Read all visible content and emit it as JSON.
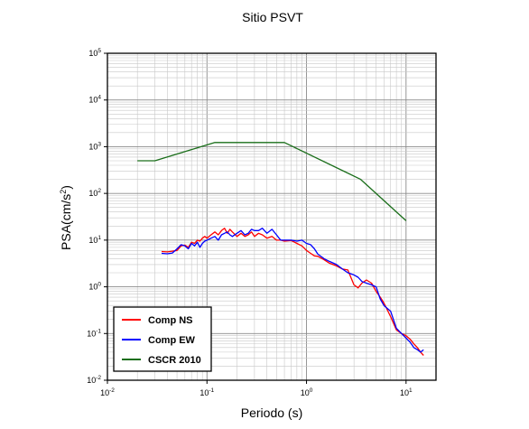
{
  "chart_data": {
    "type": "line",
    "title": "Sitio PSVT",
    "xlabel": "Periodo (s)",
    "ylabel": {
      "base": "PSA(cm/s",
      "sup": "2",
      "end": ")"
    },
    "x_scale": "log",
    "y_scale": "log",
    "xlim": [
      0.01,
      20
    ],
    "ylim": [
      0.01,
      100000
    ],
    "grid": true,
    "legend_position": "bottom-left",
    "x_ticks": [
      {
        "value": 0.01,
        "base": "10",
        "exp": "-2"
      },
      {
        "value": 0.1,
        "base": "10",
        "exp": "-1"
      },
      {
        "value": 1,
        "base": "10",
        "exp": "0"
      },
      {
        "value": 10,
        "base": "10",
        "exp": "1"
      }
    ],
    "y_ticks": [
      {
        "value": 0.01,
        "base": "10",
        "exp": "-2"
      },
      {
        "value": 0.1,
        "base": "10",
        "exp": "-1"
      },
      {
        "value": 1,
        "base": "10",
        "exp": "0"
      },
      {
        "value": 10,
        "base": "10",
        "exp": "1"
      },
      {
        "value": 100,
        "base": "10",
        "exp": "2"
      },
      {
        "value": 1000,
        "base": "10",
        "exp": "3"
      },
      {
        "value": 10000,
        "base": "10",
        "exp": "4"
      },
      {
        "value": 100000,
        "base": "10",
        "exp": "5"
      }
    ],
    "series": [
      {
        "name": "Comp NS",
        "color": "#ff0000",
        "x": [
          0.035,
          0.04,
          0.045,
          0.05,
          0.055,
          0.06,
          0.065,
          0.07,
          0.075,
          0.08,
          0.085,
          0.09,
          0.095,
          0.1,
          0.11,
          0.12,
          0.13,
          0.14,
          0.15,
          0.16,
          0.17,
          0.18,
          0.2,
          0.22,
          0.24,
          0.26,
          0.28,
          0.3,
          0.33,
          0.36,
          0.4,
          0.45,
          0.5,
          0.55,
          0.6,
          0.7,
          0.8,
          0.9,
          1.0,
          1.1,
          1.2,
          1.3,
          1.5,
          1.7,
          2.0,
          2.3,
          2.6,
          3.0,
          3.3,
          3.6,
          4.0,
          4.5,
          5.0,
          5.5,
          6.0,
          7.0,
          8.0,
          9.0,
          10,
          11,
          12,
          13,
          14,
          15
        ],
        "y": [
          5.7,
          5.6,
          5.8,
          6.0,
          7.5,
          7.8,
          7.0,
          9.0,
          8.5,
          10,
          9.5,
          11,
          12,
          11,
          13,
          15,
          13,
          16,
          18,
          14,
          17,
          15,
          12,
          14,
          12,
          13,
          15,
          12,
          14,
          13,
          11,
          12,
          10,
          10,
          9.5,
          9.8,
          8.5,
          7.5,
          6.0,
          5.2,
          4.6,
          4.5,
          3.8,
          3.2,
          2.8,
          2.4,
          2.3,
          1.1,
          0.95,
          1.2,
          1.4,
          1.2,
          0.8,
          0.6,
          0.45,
          0.23,
          0.12,
          0.1,
          0.09,
          0.075,
          0.06,
          0.05,
          0.04,
          0.034
        ]
      },
      {
        "name": "Comp EW",
        "color": "#0000ff",
        "x": [
          0.035,
          0.04,
          0.045,
          0.05,
          0.055,
          0.06,
          0.065,
          0.07,
          0.075,
          0.08,
          0.085,
          0.09,
          0.095,
          0.1,
          0.11,
          0.12,
          0.13,
          0.14,
          0.15,
          0.16,
          0.17,
          0.18,
          0.2,
          0.22,
          0.24,
          0.26,
          0.28,
          0.3,
          0.33,
          0.36,
          0.4,
          0.45,
          0.5,
          0.55,
          0.6,
          0.7,
          0.8,
          0.9,
          1.0,
          1.1,
          1.2,
          1.3,
          1.5,
          1.7,
          2.0,
          2.3,
          2.6,
          3.0,
          3.3,
          3.6,
          4.0,
          4.5,
          5.0,
          5.5,
          6.0,
          7.0,
          8.0,
          9.0,
          10,
          11,
          12,
          13,
          14,
          15
        ],
        "y": [
          5.2,
          5.1,
          5.3,
          6.5,
          8.0,
          7.5,
          6.5,
          8.5,
          7.5,
          9.0,
          7.0,
          8.5,
          9.5,
          10,
          11,
          12,
          10,
          13,
          14,
          15,
          13,
          12,
          14,
          16,
          13,
          14,
          17,
          16,
          16,
          18,
          14,
          17,
          13,
          10,
          10,
          10,
          9.5,
          10,
          8.5,
          8.0,
          6.5,
          5.0,
          4.0,
          3.5,
          3.0,
          2.4,
          2.0,
          1.8,
          1.6,
          1.3,
          1.2,
          1.1,
          1.0,
          0.55,
          0.4,
          0.3,
          0.13,
          0.1,
          0.08,
          0.065,
          0.05,
          0.045,
          0.04,
          0.045
        ]
      },
      {
        "name": "CSCR 2010",
        "color": "#1a6e1a",
        "x": [
          0.02,
          0.03,
          0.12,
          0.6,
          3.5,
          10
        ],
        "y": [
          500,
          500,
          1230,
          1230,
          200,
          26
        ]
      }
    ]
  }
}
